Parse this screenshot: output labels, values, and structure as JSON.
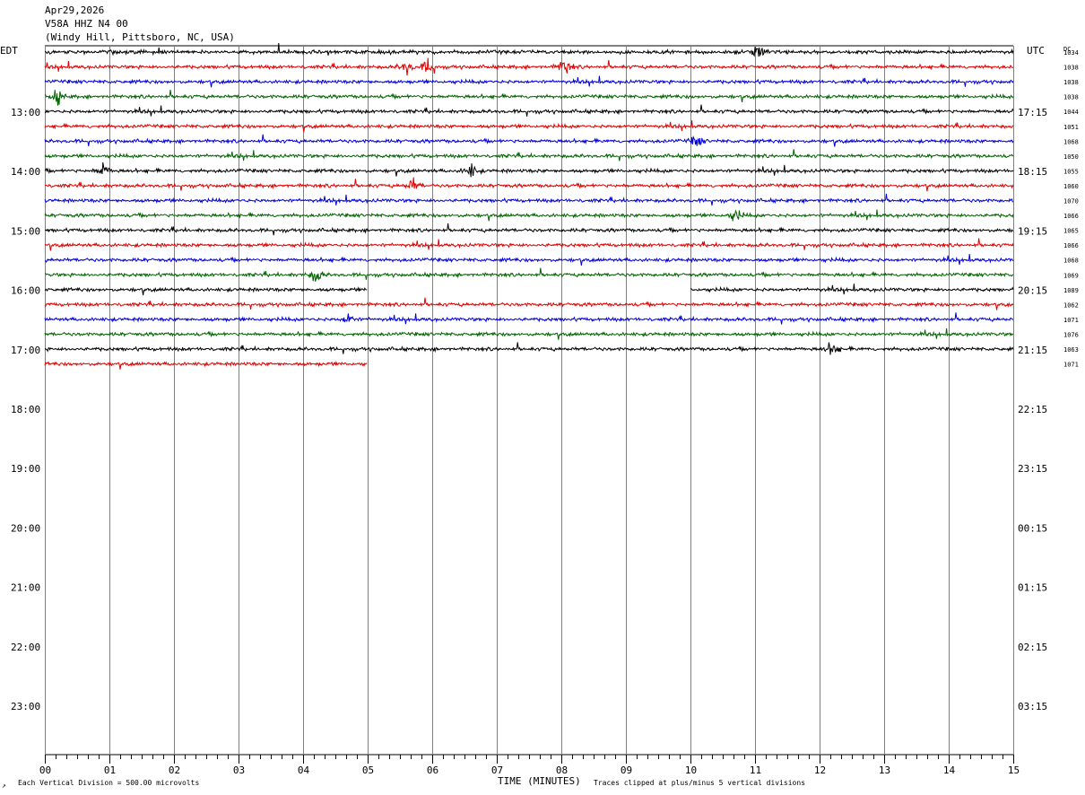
{
  "header": {
    "date": "Apr29,2026",
    "station": "V58A HHZ N4 00",
    "location": "(Windy Hill, Pittsboro, NC, USA)"
  },
  "labels": {
    "left_zone": "EDT",
    "right_zone": "UTC",
    "dc": "DC",
    "xlabel": "TIME (MINUTES)",
    "scale_note": "Each Vertical Division =  500.00 microvolts",
    "clip_note": "Traces clipped at plus/minus 5 vertical divisions",
    "corner_mark": "↗"
  },
  "colors": {
    "cycle": [
      "#000000",
      "#e00000",
      "#0000e0",
      "#006400"
    ],
    "grid": "#808080"
  },
  "chart_data": {
    "type": "line",
    "xlabel": "TIME (MINUTES)",
    "x_ticks": [
      "00",
      "01",
      "02",
      "03",
      "04",
      "05",
      "06",
      "07",
      "08",
      "09",
      "10",
      "11",
      "12",
      "13",
      "14",
      "15"
    ],
    "xlim": [
      0,
      15
    ],
    "left_hours": [
      "13:00",
      "14:00",
      "15:00",
      "16:00",
      "17:00",
      "18:00",
      "19:00",
      "20:00",
      "21:00",
      "22:00",
      "23:00"
    ],
    "right_hours": [
      "17:15",
      "18:15",
      "19:15",
      "20:15",
      "21:15",
      "22:15",
      "23:15",
      "00:15",
      "01:15",
      "02:15",
      "03:15"
    ],
    "dc_offsets": [
      "1034",
      "1038",
      "1038",
      "1038",
      "1044",
      "1051",
      "1068",
      "1050",
      "1055",
      "1060",
      "1070",
      "1066",
      "1065",
      "1066",
      "1068",
      "1069",
      "1089",
      "1062",
      "1071",
      "1076",
      "1063",
      "1071"
    ],
    "traces": [
      {
        "start": 0,
        "end": 15
      },
      {
        "start": 0,
        "end": 15
      },
      {
        "start": 0,
        "end": 15
      },
      {
        "start": 0,
        "end": 15
      },
      {
        "start": 0,
        "end": 15
      },
      {
        "start": 0,
        "end": 15
      },
      {
        "start": 0,
        "end": 15
      },
      {
        "start": 0,
        "end": 15
      },
      {
        "start": 0,
        "end": 15
      },
      {
        "start": 0,
        "end": 15
      },
      {
        "start": 0,
        "end": 15
      },
      {
        "start": 0,
        "end": 15
      },
      {
        "start": 0,
        "end": 15
      },
      {
        "start": 0,
        "end": 15
      },
      {
        "start": 0,
        "end": 15
      },
      {
        "start": 0,
        "end": 15
      },
      {
        "start": 0,
        "end": 5,
        "start2": 10,
        "end2": 15
      },
      {
        "start": 0,
        "end": 15
      },
      {
        "start": 0,
        "end": 15
      },
      {
        "start": 0,
        "end": 15
      },
      {
        "start": 0,
        "end": 15
      },
      {
        "start": 0,
        "end": 5
      }
    ],
    "events": [
      {
        "trace": 0,
        "minute": 11.05,
        "amp": 7
      },
      {
        "trace": 1,
        "minute": 5.6,
        "amp": 8
      },
      {
        "trace": 1,
        "minute": 5.95,
        "amp": 10
      },
      {
        "trace": 1,
        "minute": 8.05,
        "amp": 9
      },
      {
        "trace": 3,
        "minute": 0.2,
        "amp": 7
      },
      {
        "trace": 6,
        "minute": 10.1,
        "amp": 6
      },
      {
        "trace": 8,
        "minute": 0.9,
        "amp": 7
      },
      {
        "trace": 8,
        "minute": 6.6,
        "amp": 7
      },
      {
        "trace": 9,
        "minute": 5.7,
        "amp": 7
      },
      {
        "trace": 11,
        "minute": 10.7,
        "amp": 6
      },
      {
        "trace": 15,
        "minute": 4.2,
        "amp": 8
      },
      {
        "trace": 18,
        "minute": 4.7,
        "amp": 6
      },
      {
        "trace": 20,
        "minute": 12.2,
        "amp": 7
      }
    ],
    "grid": true
  }
}
